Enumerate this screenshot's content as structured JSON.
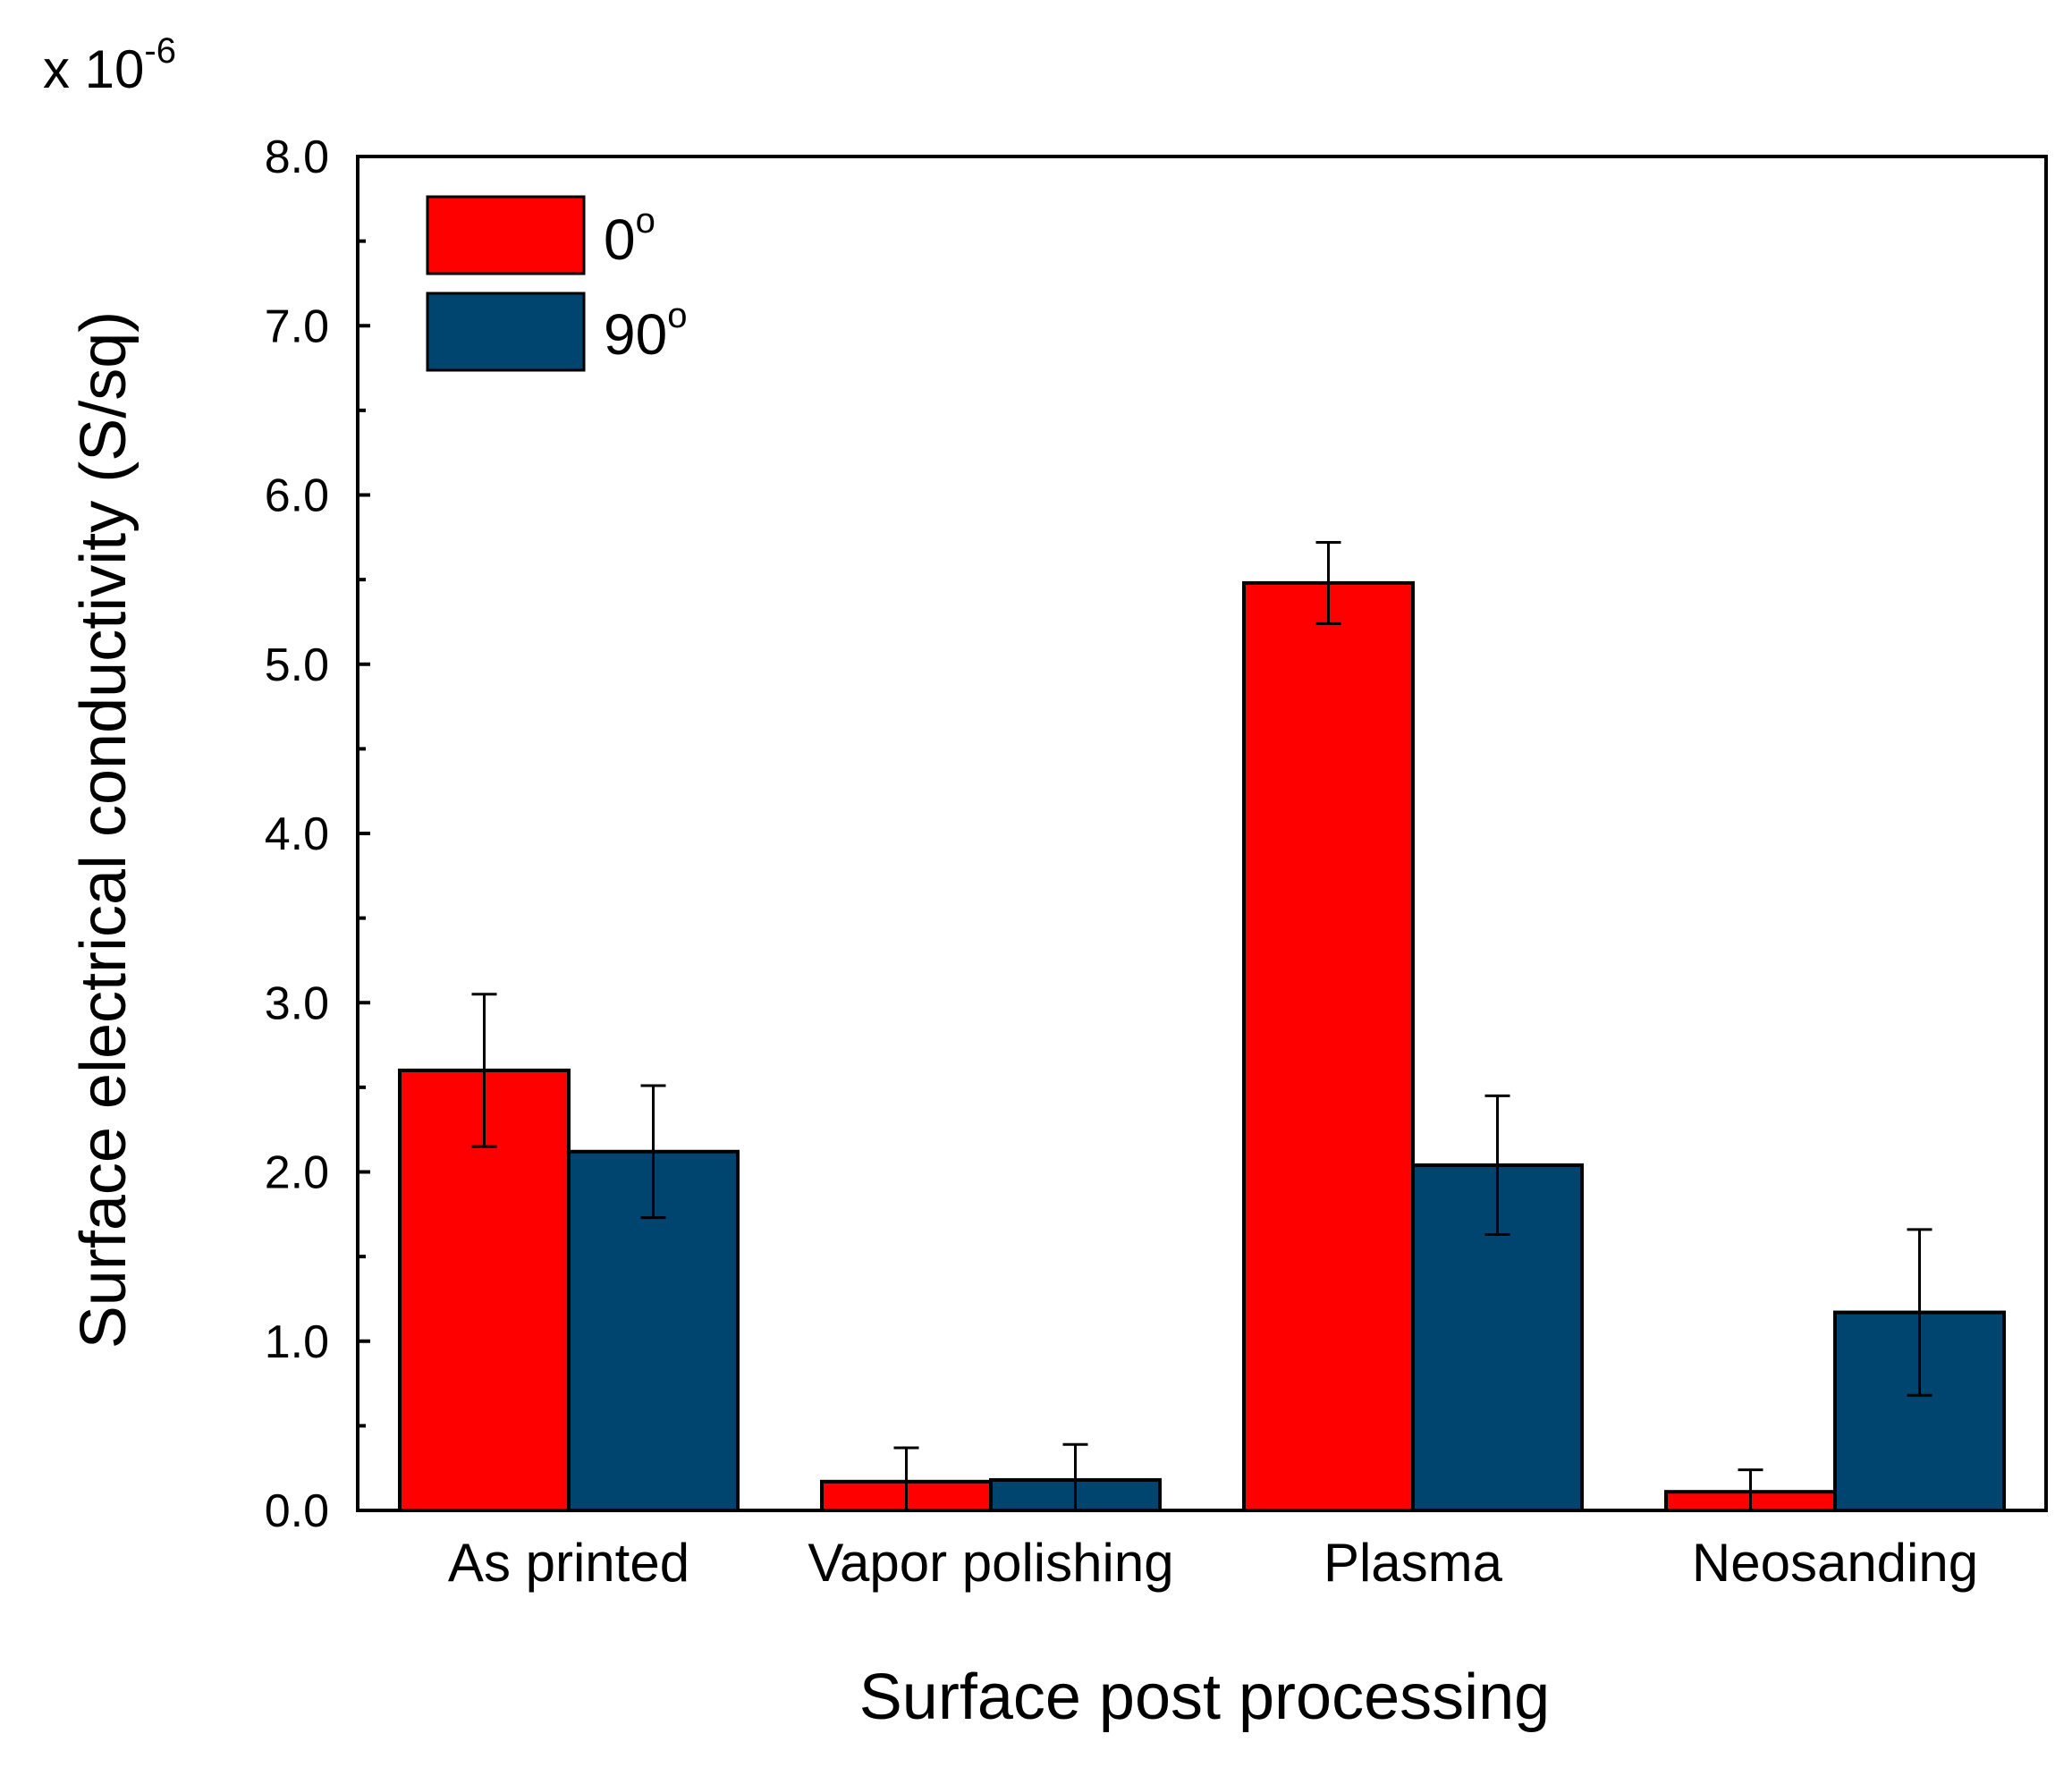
{
  "chart_data": {
    "type": "bar",
    "title": "",
    "xlabel": "Surface post processing",
    "ylabel": "Surface electrical conductivity (S/sq)",
    "scale_label": {
      "base": "x 10",
      "exponent": "-6"
    },
    "ylim": [
      0,
      8
    ],
    "yticks": [
      "0.0",
      "1.0",
      "2.0",
      "3.0",
      "4.0",
      "5.0",
      "6.0",
      "7.0",
      "8.0"
    ],
    "categories": [
      "As printed",
      "Vapor polishing",
      "Plasma",
      "Neosanding"
    ],
    "legend_position": "top-left",
    "series": [
      {
        "name": "0",
        "name_superscript": "o",
        "color": "#ff0000",
        "values": [
          2.6,
          0.17,
          5.48,
          0.11
        ],
        "errors": [
          0.45,
          0.2,
          0.24,
          0.13
        ]
      },
      {
        "name": "90",
        "name_superscript": "o",
        "color": "#004570",
        "values": [
          2.12,
          0.18,
          2.04,
          1.17
        ],
        "errors": [
          0.39,
          0.21,
          0.41,
          0.49
        ]
      }
    ]
  }
}
